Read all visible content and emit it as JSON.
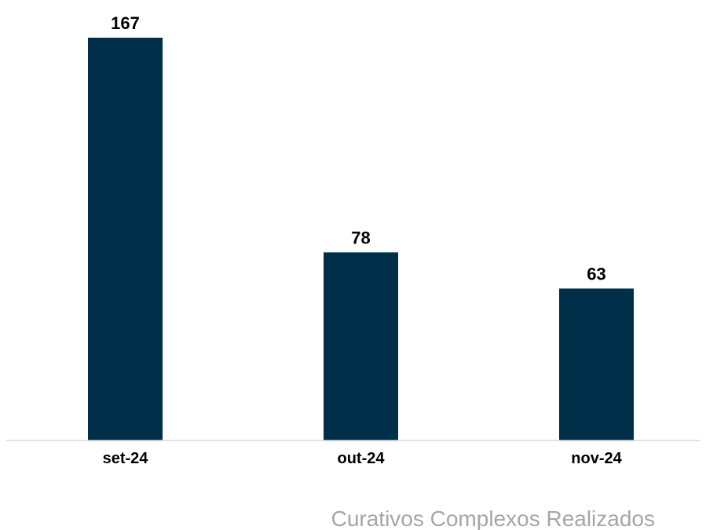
{
  "chart_data": {
    "type": "bar",
    "categories": [
      "set-24",
      "out-24",
      "nov-24"
    ],
    "values": [
      167,
      78,
      63
    ],
    "data_labels": [
      "167",
      "78",
      "63"
    ],
    "caption": "Curativos Complexos Realizados",
    "ylim": [
      0,
      167
    ],
    "grid": false,
    "legend": "none",
    "bar_color": "#003049",
    "axis_color": "#d9d9d9",
    "caption_color": "#a6a6a6"
  }
}
